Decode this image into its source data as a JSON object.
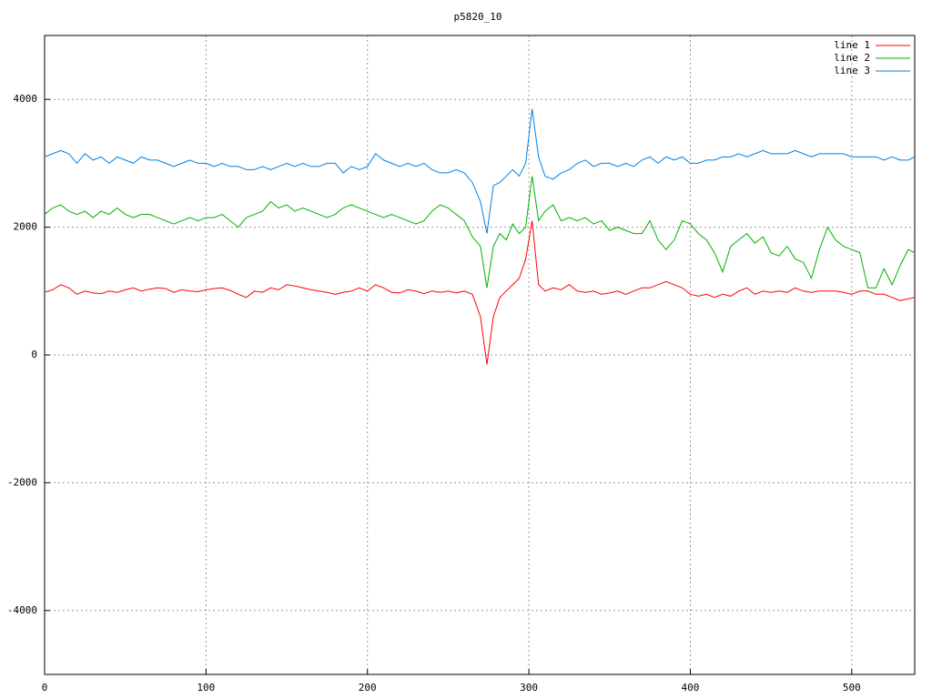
{
  "chart_data": {
    "type": "line",
    "title": "p5820_10",
    "x": [
      0,
      5,
      10,
      15,
      20,
      25,
      30,
      35,
      40,
      45,
      50,
      55,
      60,
      65,
      70,
      75,
      80,
      85,
      90,
      95,
      100,
      105,
      110,
      115,
      120,
      125,
      130,
      135,
      140,
      145,
      150,
      155,
      160,
      165,
      170,
      175,
      180,
      185,
      190,
      195,
      200,
      205,
      210,
      215,
      220,
      225,
      230,
      235,
      240,
      245,
      250,
      255,
      260,
      265,
      270,
      274,
      278,
      282,
      286,
      290,
      294,
      298,
      302,
      306,
      310,
      315,
      320,
      325,
      330,
      335,
      340,
      345,
      350,
      355,
      360,
      365,
      370,
      375,
      380,
      385,
      390,
      395,
      400,
      405,
      410,
      415,
      420,
      425,
      430,
      435,
      440,
      445,
      450,
      455,
      460,
      465,
      470,
      475,
      480,
      485,
      490,
      495,
      500,
      505,
      510,
      515,
      520,
      525,
      530,
      535,
      539
    ],
    "series": [
      {
        "name": "line 1",
        "color": "#ff0000",
        "values": [
          980,
          1020,
          1100,
          1050,
          950,
          1000,
          970,
          960,
          1000,
          980,
          1020,
          1050,
          1000,
          1030,
          1050,
          1040,
          980,
          1020,
          1000,
          990,
          1020,
          1040,
          1050,
          1010,
          950,
          900,
          1000,
          980,
          1050,
          1020,
          1100,
          1080,
          1050,
          1020,
          1000,
          980,
          950,
          980,
          1000,
          1050,
          1000,
          1100,
          1050,
          980,
          970,
          1020,
          1000,
          960,
          1000,
          980,
          1000,
          970,
          1000,
          950,
          600,
          -150,
          600,
          900,
          1000,
          1100,
          1200,
          1500,
          2100,
          1100,
          1000,
          1050,
          1020,
          1100,
          1000,
          980,
          1000,
          950,
          970,
          1000,
          950,
          1000,
          1050,
          1050,
          1100,
          1150,
          1100,
          1050,
          950,
          920,
          950,
          900,
          950,
          920,
          1000,
          1050,
          950,
          1000,
          980,
          1000,
          980,
          1050,
          1000,
          980,
          1000,
          1000,
          1000,
          980,
          950,
          1000,
          1000,
          950,
          950,
          900,
          850,
          880,
          900
        ]
      },
      {
        "name": "line 2",
        "color": "#00b000",
        "values": [
          2200,
          2300,
          2350,
          2250,
          2200,
          2250,
          2150,
          2250,
          2200,
          2300,
          2200,
          2150,
          2200,
          2200,
          2150,
          2100,
          2050,
          2100,
          2150,
          2100,
          2150,
          2150,
          2200,
          2100,
          2000,
          2150,
          2200,
          2250,
          2400,
          2300,
          2350,
          2250,
          2300,
          2250,
          2200,
          2150,
          2200,
          2300,
          2350,
          2300,
          2250,
          2200,
          2150,
          2200,
          2150,
          2100,
          2050,
          2100,
          2250,
          2350,
          2300,
          2200,
          2100,
          1850,
          1700,
          1050,
          1700,
          1900,
          1800,
          2050,
          1900,
          2000,
          2800,
          2100,
          2250,
          2350,
          2100,
          2150,
          2100,
          2150,
          2050,
          2100,
          1950,
          2000,
          1950,
          1900,
          1900,
          2100,
          1800,
          1650,
          1800,
          2100,
          2050,
          1900,
          1800,
          1600,
          1300,
          1700,
          1800,
          1900,
          1750,
          1850,
          1600,
          1550,
          1700,
          1500,
          1450,
          1200,
          1650,
          2000,
          1800,
          1700,
          1650,
          1600,
          1050,
          1050,
          1350,
          1100,
          1400,
          1650,
          1600
        ]
      },
      {
        "name": "line 3",
        "color": "#0080e0",
        "values": [
          3100,
          3150,
          3200,
          3150,
          3000,
          3150,
          3050,
          3100,
          3000,
          3100,
          3050,
          3000,
          3100,
          3050,
          3050,
          3000,
          2950,
          3000,
          3050,
          3000,
          3000,
          2950,
          3000,
          2950,
          2950,
          2900,
          2900,
          2950,
          2900,
          2950,
          3000,
          2950,
          3000,
          2950,
          2950,
          3000,
          3000,
          2850,
          2950,
          2900,
          2950,
          3150,
          3050,
          3000,
          2950,
          3000,
          2950,
          3000,
          2900,
          2850,
          2850,
          2900,
          2850,
          2700,
          2400,
          1900,
          2650,
          2700,
          2800,
          2900,
          2800,
          3000,
          3850,
          3100,
          2800,
          2750,
          2850,
          2900,
          3000,
          3050,
          2950,
          3000,
          3000,
          2950,
          3000,
          2950,
          3050,
          3100,
          3000,
          3100,
          3050,
          3100,
          3000,
          3000,
          3050,
          3050,
          3100,
          3100,
          3150,
          3100,
          3150,
          3200,
          3150,
          3150,
          3150,
          3200,
          3150,
          3100,
          3150,
          3150,
          3150,
          3150,
          3100,
          3100,
          3100,
          3100,
          3050,
          3100,
          3050,
          3050,
          3100
        ]
      }
    ],
    "xlim": [
      0,
      539
    ],
    "ylim": [
      -5000,
      5000
    ],
    "xticks": [
      0,
      100,
      200,
      300,
      400,
      500
    ],
    "yticks": [
      -4000,
      -2000,
      0,
      2000,
      4000
    ],
    "grid": true,
    "legend": "top-right"
  }
}
